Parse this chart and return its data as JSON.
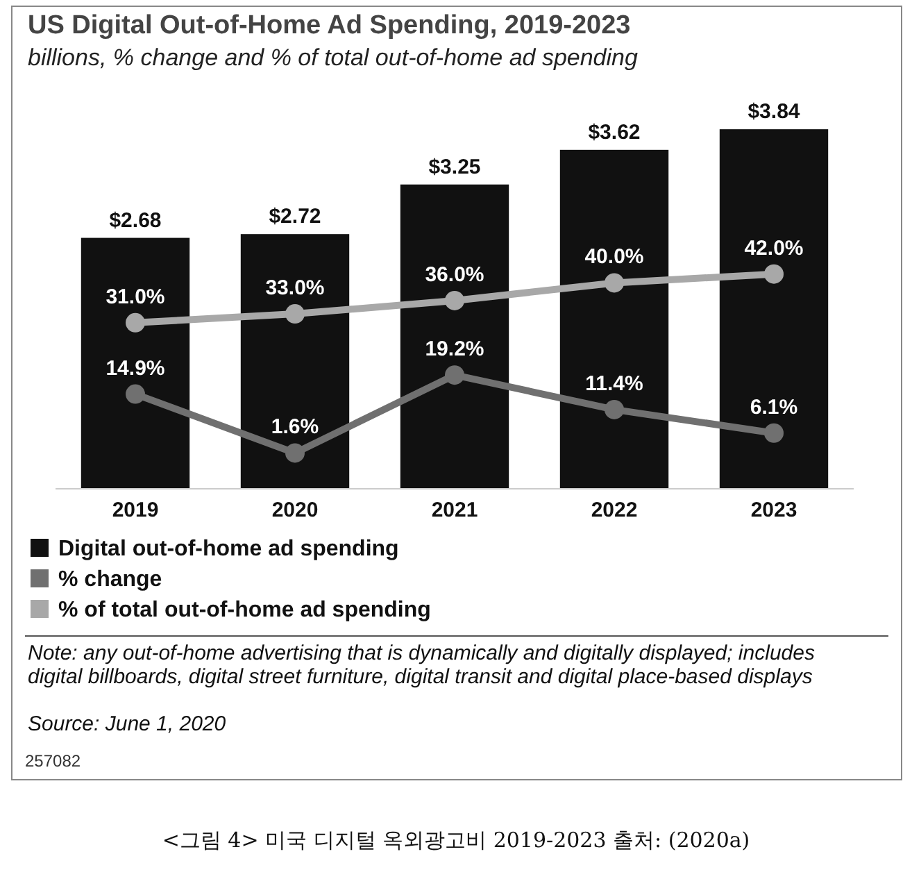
{
  "chart_data": {
    "type": "bar",
    "title": "US Digital Out-of-Home Ad Spending, 2019-2023",
    "subtitle": "billions, % change and % of total out-of-home ad spending",
    "categories": [
      "2019",
      "2020",
      "2021",
      "2022",
      "2023"
    ],
    "series": [
      {
        "name": "Digital out-of-home ad spending",
        "color": "#111111",
        "values": [
          2.68,
          2.72,
          3.25,
          3.62,
          3.84
        ],
        "value_labels": [
          "$2.68",
          "$2.72",
          "$3.25",
          "$3.62",
          "$3.84"
        ]
      },
      {
        "name": "% change",
        "type": "line",
        "axis": "y2",
        "color": "#707070",
        "values": [
          14.9,
          1.6,
          19.2,
          11.4,
          6.1
        ],
        "value_labels": [
          "14.9%",
          "1.6%",
          "19.2%",
          "11.4%",
          "6.1%"
        ]
      },
      {
        "name": "% of total out-of-home ad spending",
        "type": "line",
        "axis": "y2",
        "color": "#a8a8a8",
        "values": [
          31.0,
          33.0,
          36.0,
          40.0,
          42.0
        ],
        "value_labels": [
          "31.0%",
          "33.0%",
          "36.0%",
          "40.0%",
          "42.0%"
        ]
      }
    ],
    "tick_labels": "x",
    "marker": "circle",
    "legend": "bottom",
    "annotations": [
      "Note: any out-of-home advertising that is dynamically and digitally displayed; includes digital billboards, digital street furniture, digital transit and digital place-based displays",
      "Source: June 1, 2020",
      "257082",
      "<그림 4> 미국 디지털 옥외광고비 2019-2023 출처: (2020a)"
    ]
  }
}
